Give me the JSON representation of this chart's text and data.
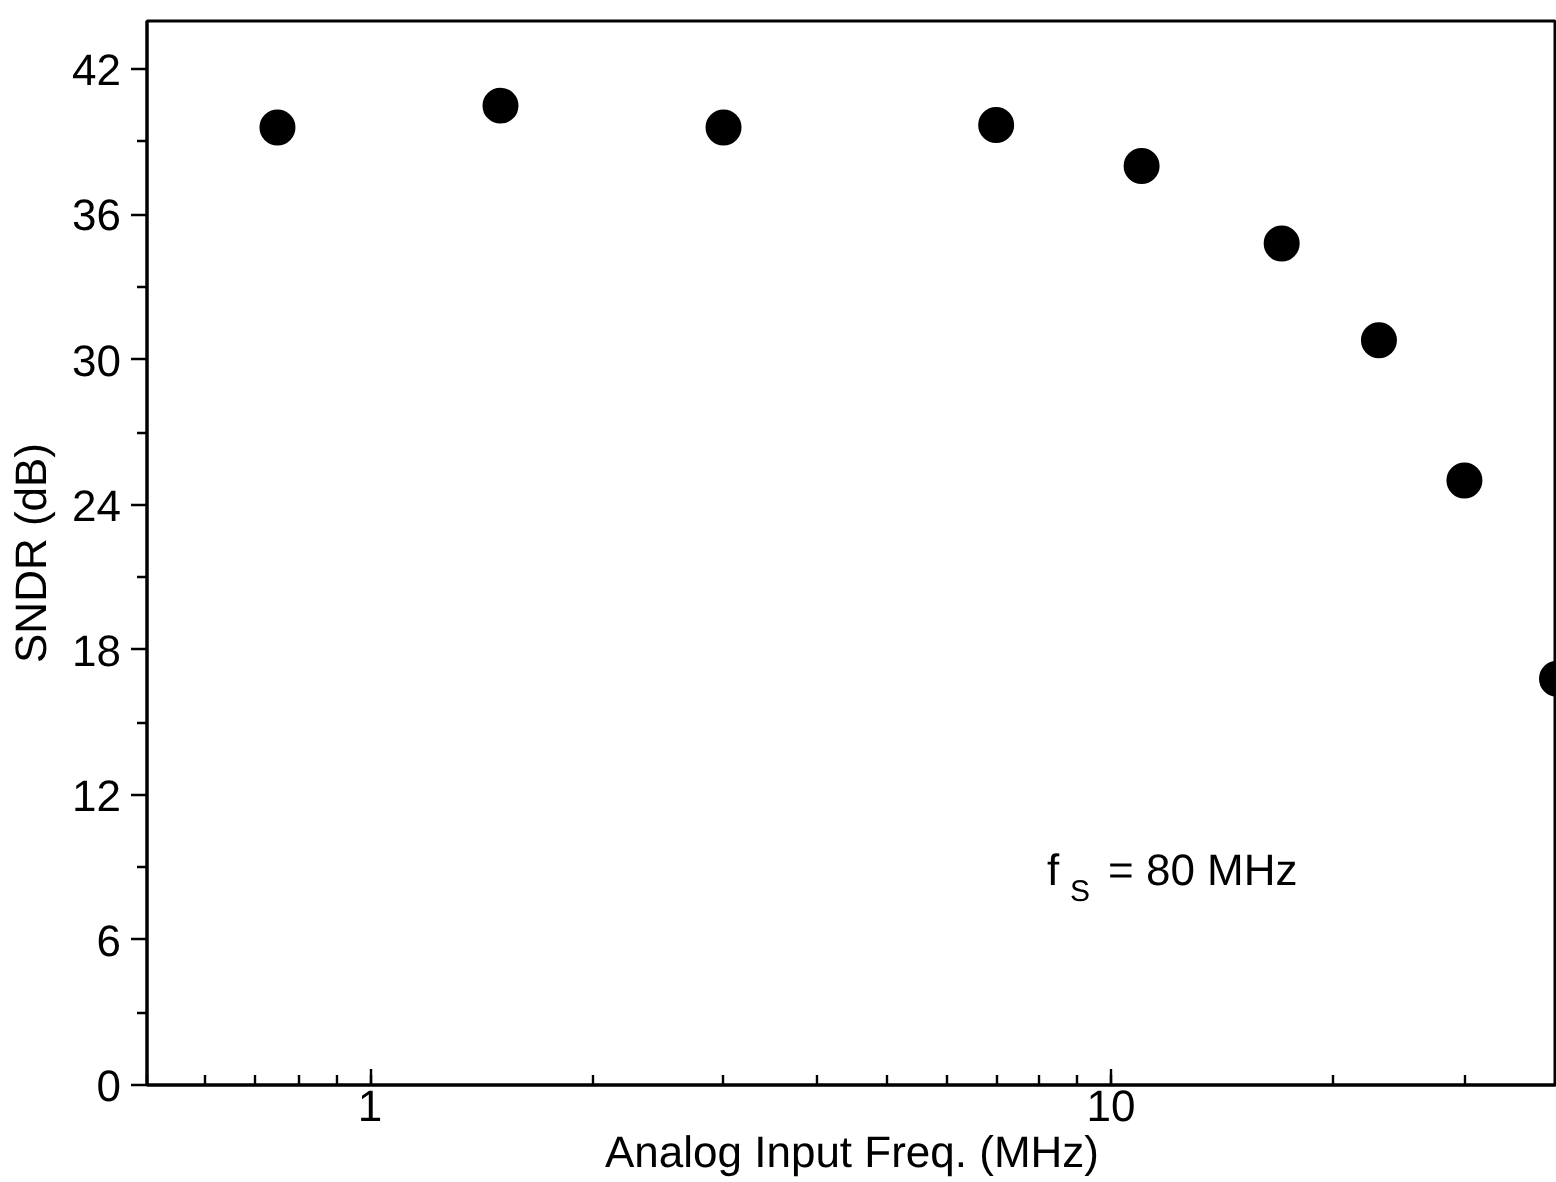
{
  "chart_data": {
    "type": "scatter",
    "xlabel": "Analog Input Freq. (MHz)",
    "ylabel": "SNDR (dB)",
    "x": [
      0.75,
      1.5,
      3,
      7,
      11,
      17,
      23,
      30,
      40
    ],
    "series": [
      {
        "color": "#000000",
        "values": [
          39.6,
          40.5,
          39.6,
          39.7,
          38.0,
          34.8,
          30.8,
          25.0,
          16.8
        ]
      }
    ],
    "xlim": [
      0.5,
      40
    ],
    "ylim": [
      0,
      44
    ],
    "xticks": [
      1,
      10
    ],
    "yticks": [
      0,
      6,
      12,
      18,
      24,
      30,
      36,
      42
    ],
    "log": "x",
    "grid": false,
    "marker": "circle",
    "annotations": [
      "f$_{S}$ = 80 MHz"
    ]
  }
}
